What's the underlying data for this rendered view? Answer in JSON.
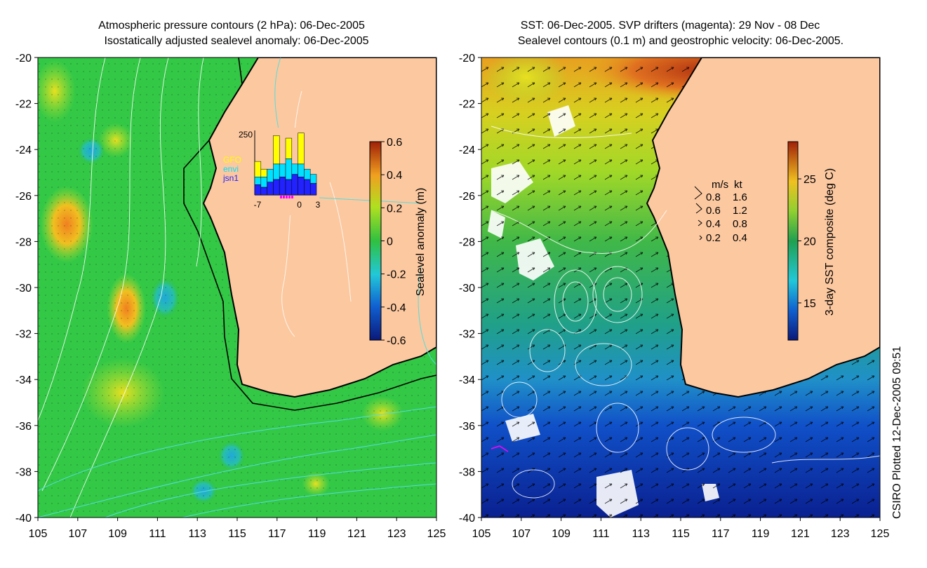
{
  "left_panel": {
    "title_line1": "Atmospheric pressure contours (2 hPa): 06-Dec-2005",
    "title_line2": "Isostatically adjusted sealevel anomaly: 06-Dec-2005",
    "colorbar_label": "Sealevel anomaly (m)",
    "colorbar_ticks": [
      "0.6",
      "0.4",
      "0.2",
      "0",
      "-0.2",
      "-0.4",
      "-0.6"
    ],
    "colorbar_range": [
      -0.6,
      0.6
    ],
    "inset": {
      "ymax_label": "250",
      "legend": [
        {
          "label": "GFO",
          "color": "#ffff00"
        },
        {
          "label": "envi",
          "color": "#00e0ff"
        },
        {
          "label": "jsn1",
          "color": "#2222ff"
        }
      ],
      "x_ticks": [
        "-7",
        "0",
        "3"
      ],
      "days": [
        -7,
        -6,
        -5,
        -4,
        -3,
        -2,
        -1,
        0,
        1,
        2
      ],
      "jsn1": [
        40,
        30,
        50,
        60,
        70,
        60,
        80,
        70,
        60,
        45
      ],
      "envi": [
        30,
        40,
        50,
        60,
        50,
        80,
        40,
        50,
        40,
        35
      ],
      "gfo": [
        60,
        30,
        0,
        110,
        0,
        80,
        0,
        120,
        0,
        0
      ]
    }
  },
  "right_panel": {
    "title_line1": "SST: 06-Dec-2005. SVP drifters (magenta): 29 Nov - 08 Dec",
    "title_line2": "Sealevel contours (0.1 m) and geostrophic velocity: 06-Dec-2005.",
    "colorbar_label": "3-day SST composite (deg C)",
    "colorbar_ticks": [
      "25",
      "20",
      "15"
    ],
    "colorbar_range": [
      12,
      28
    ],
    "velocity_legend": {
      "headers": [
        "m/s",
        "kt"
      ],
      "rows": [
        {
          "ms": "0.8",
          "kt": "1.6"
        },
        {
          "ms": "0.6",
          "kt": "1.2"
        },
        {
          "ms": "0.4",
          "kt": "0.8"
        },
        {
          "ms": "0.2",
          "kt": "0.4"
        }
      ]
    }
  },
  "axes": {
    "lat_ticks": [
      "-20",
      "-22",
      "-24",
      "-26",
      "-28",
      "-30",
      "-32",
      "-34",
      "-36",
      "-38",
      "-40"
    ],
    "lon_ticks": [
      "105",
      "107",
      "109",
      "111",
      "113",
      "115",
      "117",
      "119",
      "121",
      "123",
      "125"
    ],
    "lat_range": [
      -40,
      -20
    ],
    "lon_range": [
      105,
      125
    ]
  },
  "credit": "CSIRO Plotted 12-Dec-2005 09:51",
  "colors": {
    "land": "#fcc8a0",
    "sst_warm": "#a0200a",
    "sla_mean": "#33cc44",
    "contour": "#ffffff",
    "pressure_cyan": "#55dddd",
    "drifter": "#ff00ff"
  }
}
